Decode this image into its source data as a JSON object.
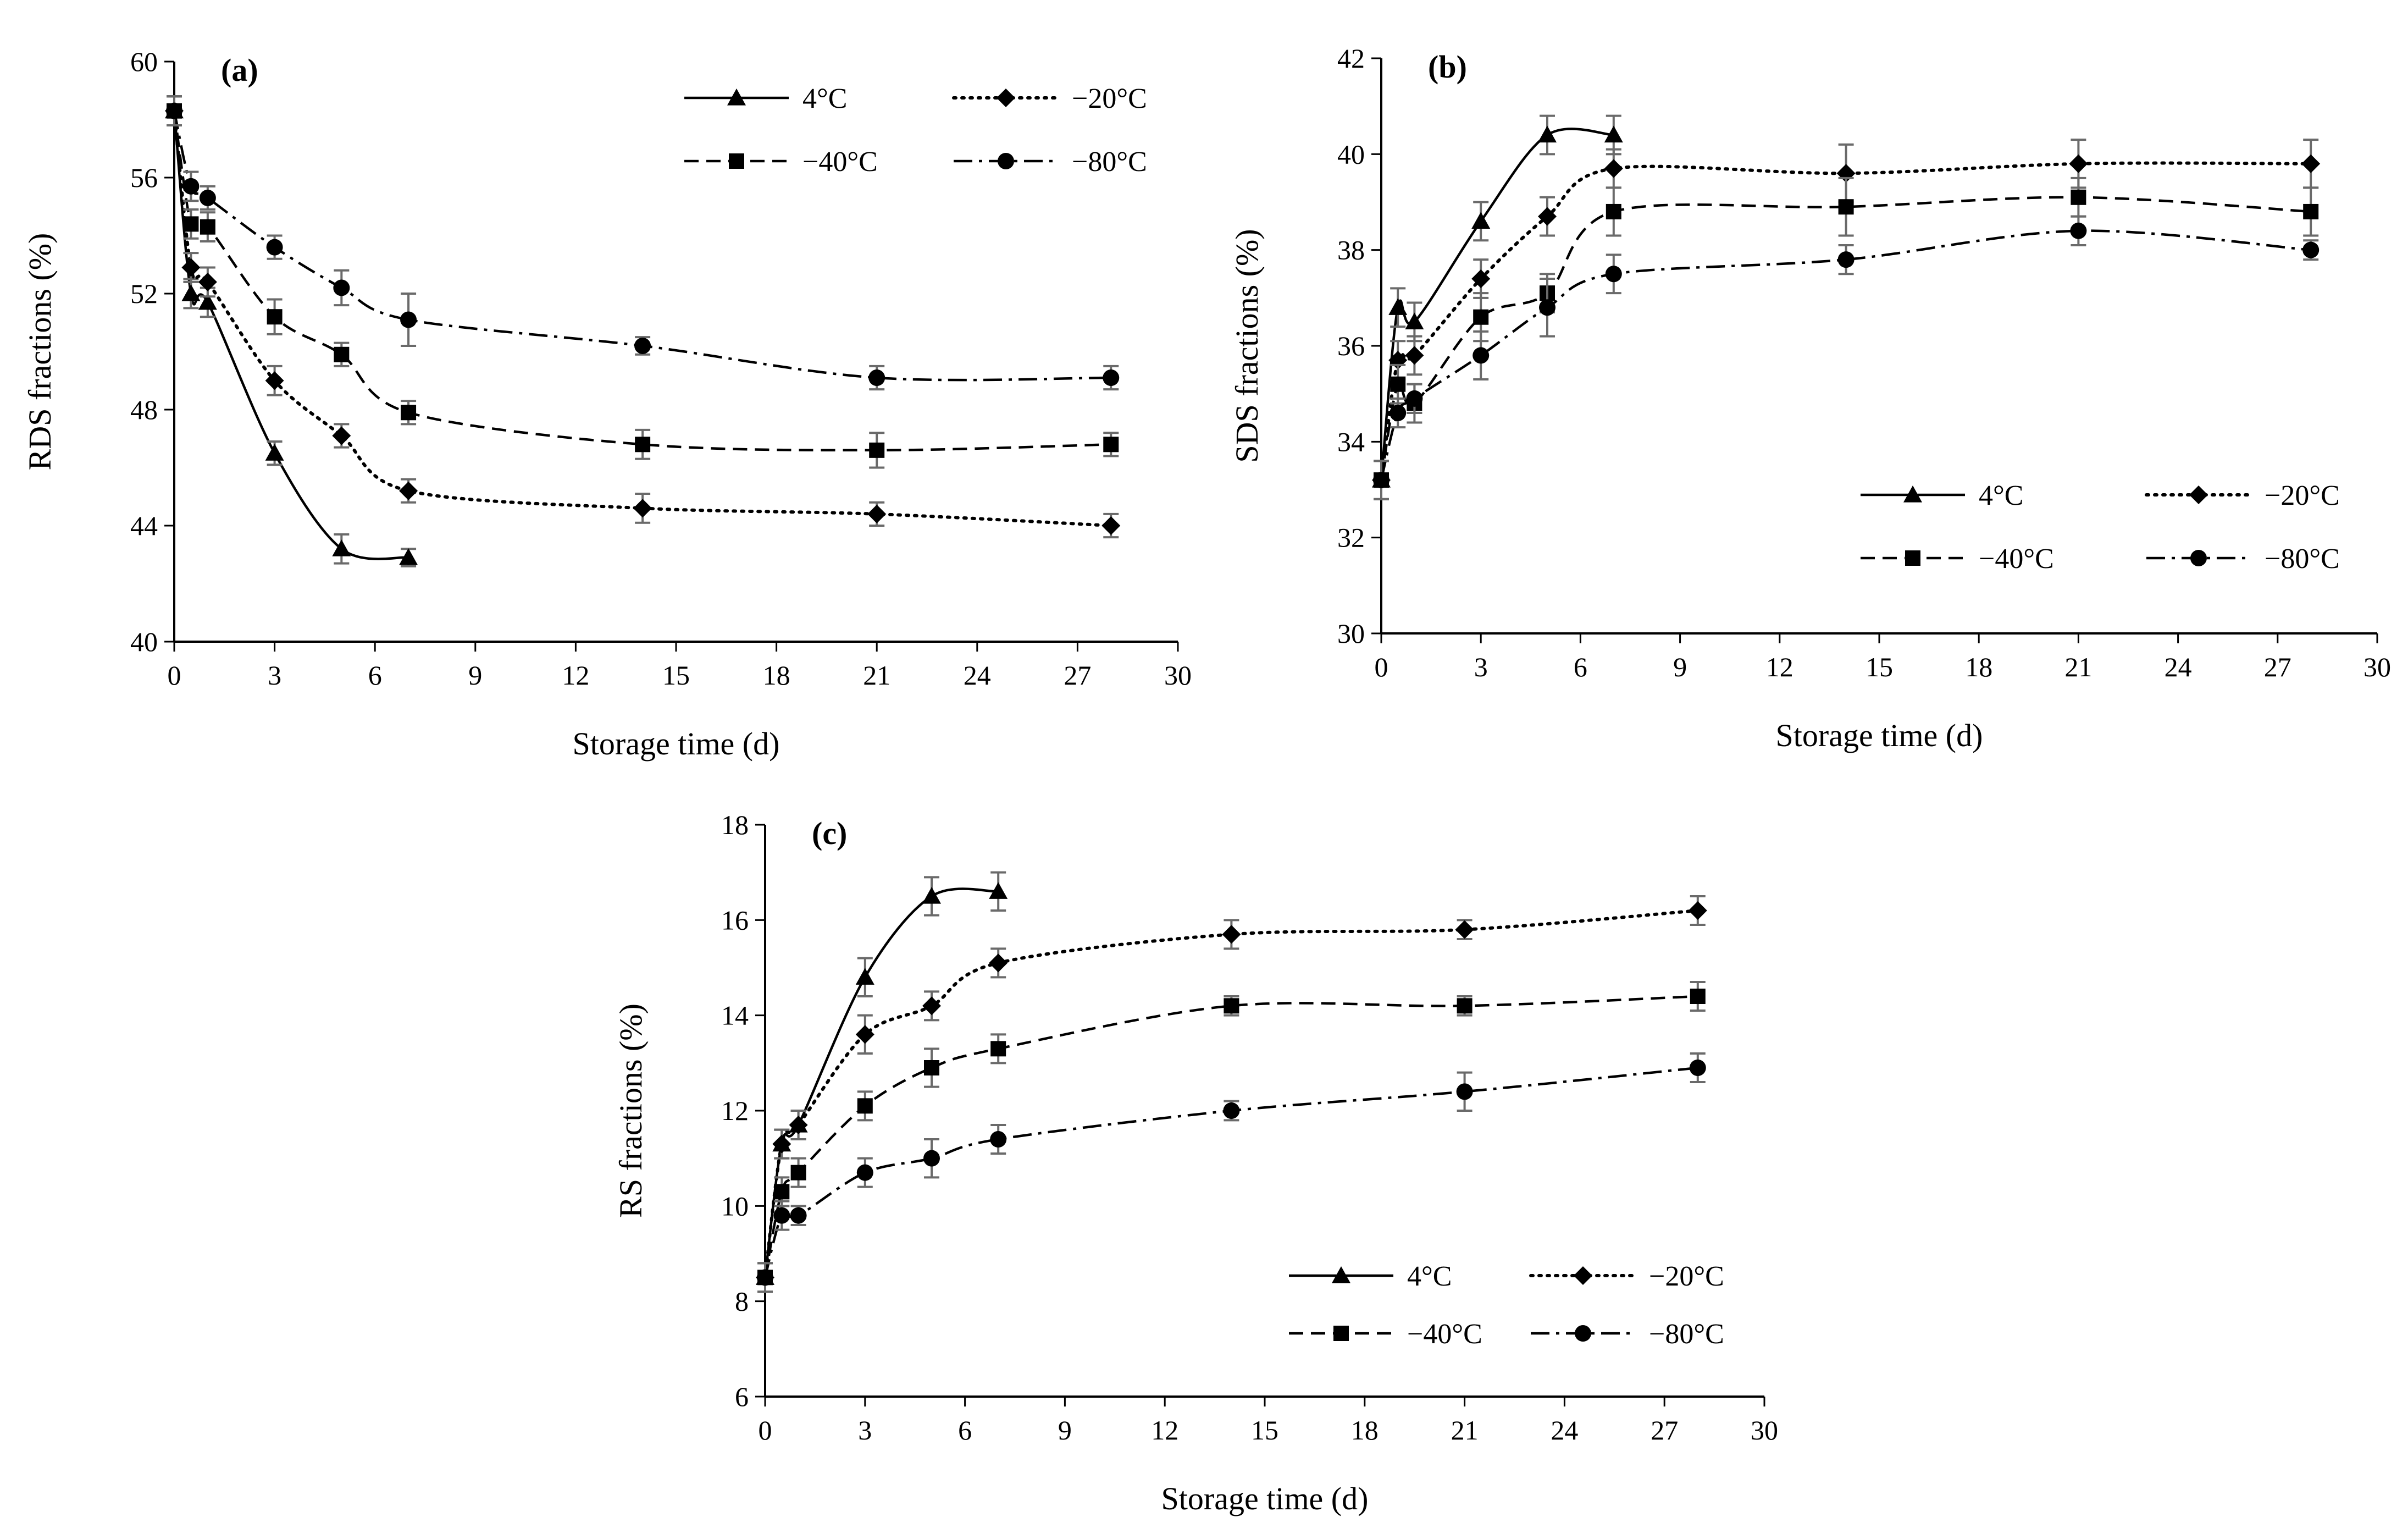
{
  "chart_data": [
    {
      "panel": "(a)",
      "type": "line",
      "xlabel": "Storage time (d)",
      "ylabel": "RDS fractions (%)",
      "xlim": [
        0,
        30
      ],
      "ylim": [
        40,
        60
      ],
      "xticks": [
        0,
        3,
        6,
        9,
        12,
        15,
        18,
        21,
        24,
        27,
        30
      ],
      "yticks": [
        40,
        44,
        48,
        52,
        56,
        60
      ],
      "grid": false,
      "legend_position": "top-right",
      "series": [
        {
          "name": "4°C",
          "marker": "triangle",
          "dash": "solid",
          "smooth": true,
          "x": [
            0,
            0.5,
            1,
            3,
            5,
            7
          ],
          "y": [
            58.3,
            52.0,
            51.7,
            46.5,
            43.2,
            42.9
          ],
          "err": [
            0.5,
            0.5,
            0.5,
            0.4,
            0.5,
            0.3
          ]
        },
        {
          "name": "−20°C",
          "marker": "diamond",
          "dash": "dotted",
          "smooth": true,
          "x": [
            0,
            0.5,
            1,
            3,
            5,
            7,
            14,
            21,
            28
          ],
          "y": [
            58.3,
            52.9,
            52.4,
            49.0,
            47.1,
            45.2,
            44.6,
            44.4,
            44.0
          ],
          "err": [
            0.5,
            0.5,
            0.5,
            0.5,
            0.4,
            0.4,
            0.5,
            0.4,
            0.4
          ]
        },
        {
          "name": "−40°C",
          "marker": "square",
          "dash": "dashed",
          "smooth": true,
          "x": [
            0,
            0.5,
            1,
            3,
            5,
            7,
            14,
            21,
            28
          ],
          "y": [
            58.3,
            54.4,
            54.3,
            51.2,
            49.9,
            47.9,
            46.8,
            46.6,
            46.8
          ],
          "err": [
            0.5,
            0.5,
            0.5,
            0.6,
            0.4,
            0.4,
            0.5,
            0.6,
            0.4
          ]
        },
        {
          "name": "−80°C",
          "marker": "circle",
          "dash": "dashdot",
          "smooth": true,
          "x": [
            0,
            0.5,
            1,
            3,
            5,
            7,
            14,
            21,
            28
          ],
          "y": [
            58.3,
            55.7,
            55.3,
            53.6,
            52.2,
            51.1,
            50.2,
            49.1,
            49.1
          ],
          "err": [
            0.5,
            0.5,
            0.4,
            0.4,
            0.6,
            0.9,
            0.3,
            0.4,
            0.4
          ]
        }
      ]
    },
    {
      "panel": "(b)",
      "type": "line",
      "xlabel": "Storage time (d)",
      "ylabel": "SDS fractions (%)",
      "xlim": [
        0,
        30
      ],
      "ylim": [
        30,
        42
      ],
      "xticks": [
        0,
        3,
        6,
        9,
        12,
        15,
        18,
        21,
        24,
        27,
        30
      ],
      "yticks": [
        30,
        32,
        34,
        36,
        38,
        40,
        42
      ],
      "grid": false,
      "legend_position": "bottom-right",
      "series": [
        {
          "name": "4°C",
          "marker": "triangle",
          "dash": "solid",
          "smooth": true,
          "x": [
            0,
            0.5,
            1,
            3,
            5,
            7
          ],
          "y": [
            33.2,
            36.8,
            36.5,
            38.6,
            40.4,
            40.4
          ],
          "err": [
            0.4,
            0.4,
            0.4,
            0.4,
            0.4,
            0.4
          ]
        },
        {
          "name": "−20°C",
          "marker": "diamond",
          "dash": "dotted",
          "smooth": true,
          "x": [
            0,
            0.5,
            1,
            3,
            5,
            7,
            14,
            21,
            28
          ],
          "y": [
            33.2,
            35.7,
            35.8,
            37.4,
            38.7,
            39.7,
            39.6,
            39.8,
            39.8
          ],
          "err": [
            0.4,
            0.4,
            0.4,
            0.4,
            0.4,
            0.4,
            0.6,
            0.5,
            0.5
          ]
        },
        {
          "name": "−40°C",
          "marker": "square",
          "dash": "dashed",
          "smooth": true,
          "x": [
            0,
            0.5,
            1,
            3,
            5,
            7,
            14,
            21,
            28
          ],
          "y": [
            33.2,
            35.2,
            34.8,
            36.6,
            37.1,
            38.8,
            38.9,
            39.1,
            38.8
          ],
          "err": [
            0.4,
            0.4,
            0.4,
            0.5,
            0.4,
            0.5,
            0.6,
            0.4,
            0.5
          ]
        },
        {
          "name": "−80°C",
          "marker": "circle",
          "dash": "dashdot",
          "smooth": true,
          "x": [
            0,
            0.5,
            1,
            3,
            5,
            7,
            14,
            21,
            28
          ],
          "y": [
            33.2,
            34.6,
            34.9,
            35.8,
            36.8,
            37.5,
            37.8,
            38.4,
            38.0
          ],
          "err": [
            0.4,
            0.3,
            0.3,
            0.5,
            0.6,
            0.4,
            0.3,
            0.3,
            0.2
          ]
        }
      ]
    },
    {
      "panel": "(c)",
      "type": "line",
      "xlabel": "Storage time (d)",
      "ylabel": "RS fractions (%)",
      "xlim": [
        0,
        30
      ],
      "ylim": [
        6,
        18
      ],
      "xticks": [
        0,
        3,
        6,
        9,
        12,
        15,
        18,
        21,
        24,
        27,
        30
      ],
      "yticks": [
        6,
        8,
        10,
        12,
        14,
        16,
        18
      ],
      "grid": false,
      "legend_position": "bottom-right",
      "series": [
        {
          "name": "4°C",
          "marker": "triangle",
          "dash": "solid",
          "smooth": true,
          "x": [
            0,
            0.5,
            1,
            3,
            5,
            7
          ],
          "y": [
            8.5,
            11.3,
            11.7,
            14.8,
            16.5,
            16.6
          ],
          "err": [
            0.3,
            0.3,
            0.3,
            0.4,
            0.4,
            0.4
          ]
        },
        {
          "name": "−20°C",
          "marker": "diamond",
          "dash": "dotted",
          "smooth": true,
          "x": [
            0,
            0.5,
            1,
            3,
            5,
            7,
            14,
            21,
            28
          ],
          "y": [
            8.5,
            11.3,
            11.7,
            13.6,
            14.2,
            15.1,
            15.7,
            15.8,
            16.2
          ],
          "err": [
            0.3,
            0.3,
            0.3,
            0.4,
            0.3,
            0.3,
            0.3,
            0.2,
            0.3
          ]
        },
        {
          "name": "−40°C",
          "marker": "square",
          "dash": "dashed",
          "smooth": true,
          "x": [
            0,
            0.5,
            1,
            3,
            5,
            7,
            14,
            21,
            28
          ],
          "y": [
            8.5,
            10.3,
            10.7,
            12.1,
            12.9,
            13.3,
            14.2,
            14.2,
            14.4
          ],
          "err": [
            0.3,
            0.3,
            0.3,
            0.3,
            0.4,
            0.3,
            0.2,
            0.2,
            0.3
          ]
        },
        {
          "name": "−80°C",
          "marker": "circle",
          "dash": "dashdot",
          "smooth": true,
          "x": [
            0,
            0.5,
            1,
            3,
            5,
            7,
            14,
            21,
            28
          ],
          "y": [
            8.5,
            9.8,
            9.8,
            10.7,
            11.0,
            11.4,
            12.0,
            12.4,
            12.9
          ],
          "err": [
            0.3,
            0.3,
            0.2,
            0.3,
            0.4,
            0.3,
            0.2,
            0.4,
            0.3
          ]
        }
      ]
    }
  ]
}
